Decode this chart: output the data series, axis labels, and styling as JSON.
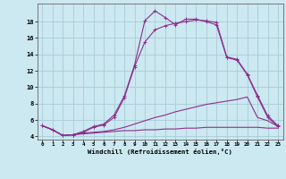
{
  "xlabel": "Windchill (Refroidissement éolien,°C)",
  "x": [
    0,
    1,
    2,
    3,
    4,
    5,
    6,
    7,
    8,
    9,
    10,
    11,
    12,
    13,
    14,
    15,
    16,
    17,
    18,
    19,
    20,
    21,
    22,
    23
  ],
  "line1": [
    5.3,
    4.8,
    4.1,
    4.2,
    4.6,
    5.2,
    5.5,
    6.6,
    8.9,
    12.7,
    18.1,
    19.3,
    18.5,
    17.6,
    18.3,
    18.3,
    18.0,
    17.6,
    13.6,
    13.3,
    11.5,
    8.8,
    6.3,
    5.2
  ],
  "line2": [
    5.3,
    4.8,
    4.1,
    4.2,
    4.5,
    5.1,
    5.4,
    6.3,
    8.7,
    12.5,
    15.5,
    17.0,
    17.5,
    17.8,
    18.0,
    18.2,
    18.1,
    17.9,
    13.7,
    13.4,
    11.6,
    9.0,
    6.5,
    5.3
  ],
  "line3": [
    5.3,
    4.8,
    4.1,
    4.2,
    4.4,
    4.5,
    4.6,
    4.8,
    5.1,
    5.5,
    5.9,
    6.3,
    6.6,
    7.0,
    7.3,
    7.6,
    7.9,
    8.1,
    8.3,
    8.5,
    8.8,
    6.3,
    5.9,
    5.2
  ],
  "line4": [
    5.3,
    4.8,
    4.1,
    4.2,
    4.3,
    4.4,
    4.5,
    4.6,
    4.7,
    4.7,
    4.8,
    4.8,
    4.9,
    4.9,
    5.0,
    5.0,
    5.1,
    5.1,
    5.1,
    5.1,
    5.1,
    5.1,
    5.0,
    5.0
  ],
  "line_color": "#8b2f8e",
  "bg_color": "#cce8f0",
  "grid_color": "#a8ccd8",
  "ylim": [
    3.6,
    20.2
  ],
  "xlim": [
    -0.5,
    23.5
  ],
  "yticks": [
    4,
    6,
    8,
    10,
    12,
    14,
    16,
    18
  ],
  "xticks": [
    0,
    1,
    2,
    3,
    4,
    5,
    6,
    7,
    8,
    9,
    10,
    11,
    12,
    13,
    14,
    15,
    16,
    17,
    18,
    19,
    20,
    21,
    22,
    23
  ]
}
